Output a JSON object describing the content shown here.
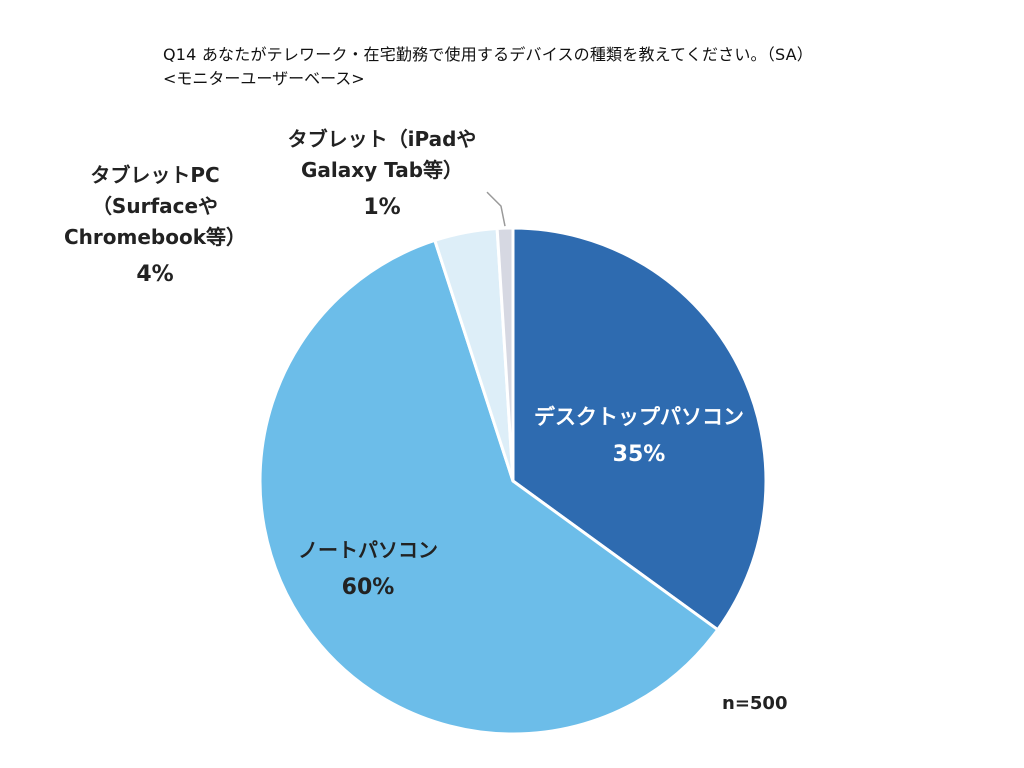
{
  "chart_data": {
    "type": "pie",
    "title": "Q14 あなたがテレワーク・在宅勤務で使用するデバイスの種類を教えてください。（SA）",
    "subtitle": "<モニターユーザーベース>",
    "note": "n=500",
    "slices": [
      {
        "label_lines": [
          "デスクトップパソコン"
        ],
        "value": 35,
        "value_label": "35%",
        "color": "#2e6bb0"
      },
      {
        "label_lines": [
          "ノートパソコン"
        ],
        "value": 60,
        "value_label": "60%",
        "color": "#6cbde9"
      },
      {
        "label_lines": [
          "タブレットPC",
          "（Surfaceや",
          "Chromebook等）"
        ],
        "value": 4,
        "value_label": "4%",
        "color": "#ddeef8"
      },
      {
        "label_lines": [
          "タブレット（iPadや",
          "Galaxy Tab等）"
        ],
        "value": 1,
        "value_label": "1%",
        "color": "#d6d8e2"
      }
    ]
  }
}
